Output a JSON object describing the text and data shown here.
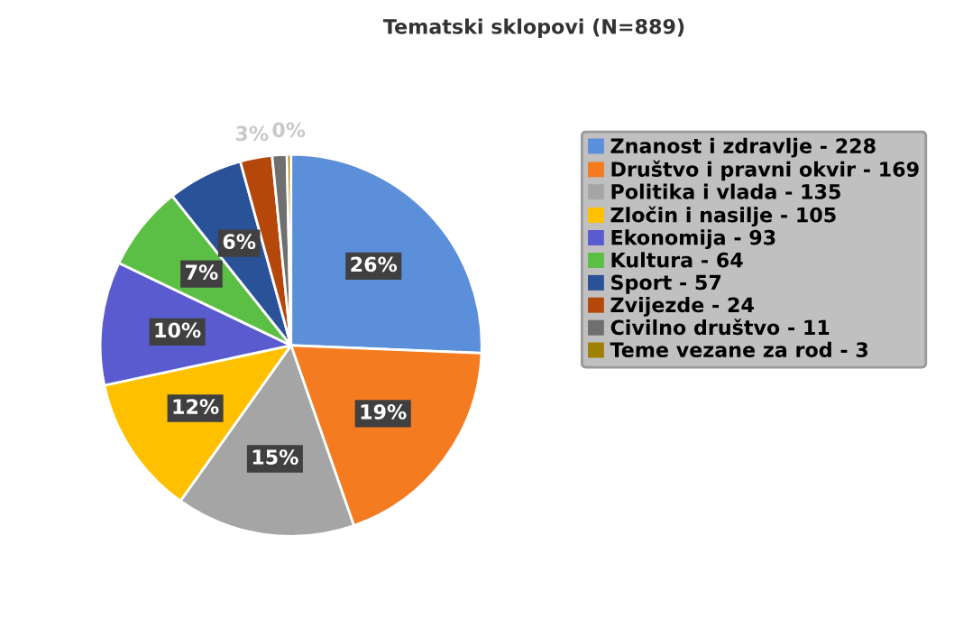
{
  "chart_data": {
    "type": "pie",
    "title": "Tematski sklopovi (N=889)",
    "categories": [
      "Znanost i zdravlje - 228",
      "Društvo i pravni okvir - 169",
      "Politika i vlada - 135",
      "Zločin i nasilje - 105",
      "Ekonomija - 93",
      "Kultura - 64",
      "Sport - 57",
      "Zvijezde - 24",
      "Civilno društvo - 11",
      "Teme vezane za rod - 3"
    ],
    "values": [
      25.64,
      19.01,
      15.19,
      11.81,
      10.46,
      7.2,
      6.41,
      2.7,
      1.24,
      0.34
    ],
    "colors": [
      "#5b8fd9",
      "#f47b20",
      "#a5a5a5",
      "#ffc000",
      "#5b5bd0",
      "#5cbf45",
      "#2a5298",
      "#b5470b",
      "#6f6f6f",
      "#a08000"
    ],
    "value_labels": [
      "26%",
      "19%",
      "15%",
      "12%",
      "10%",
      "7%",
      "6%",
      "3%",
      null,
      "0%"
    ],
    "legend": "right"
  }
}
